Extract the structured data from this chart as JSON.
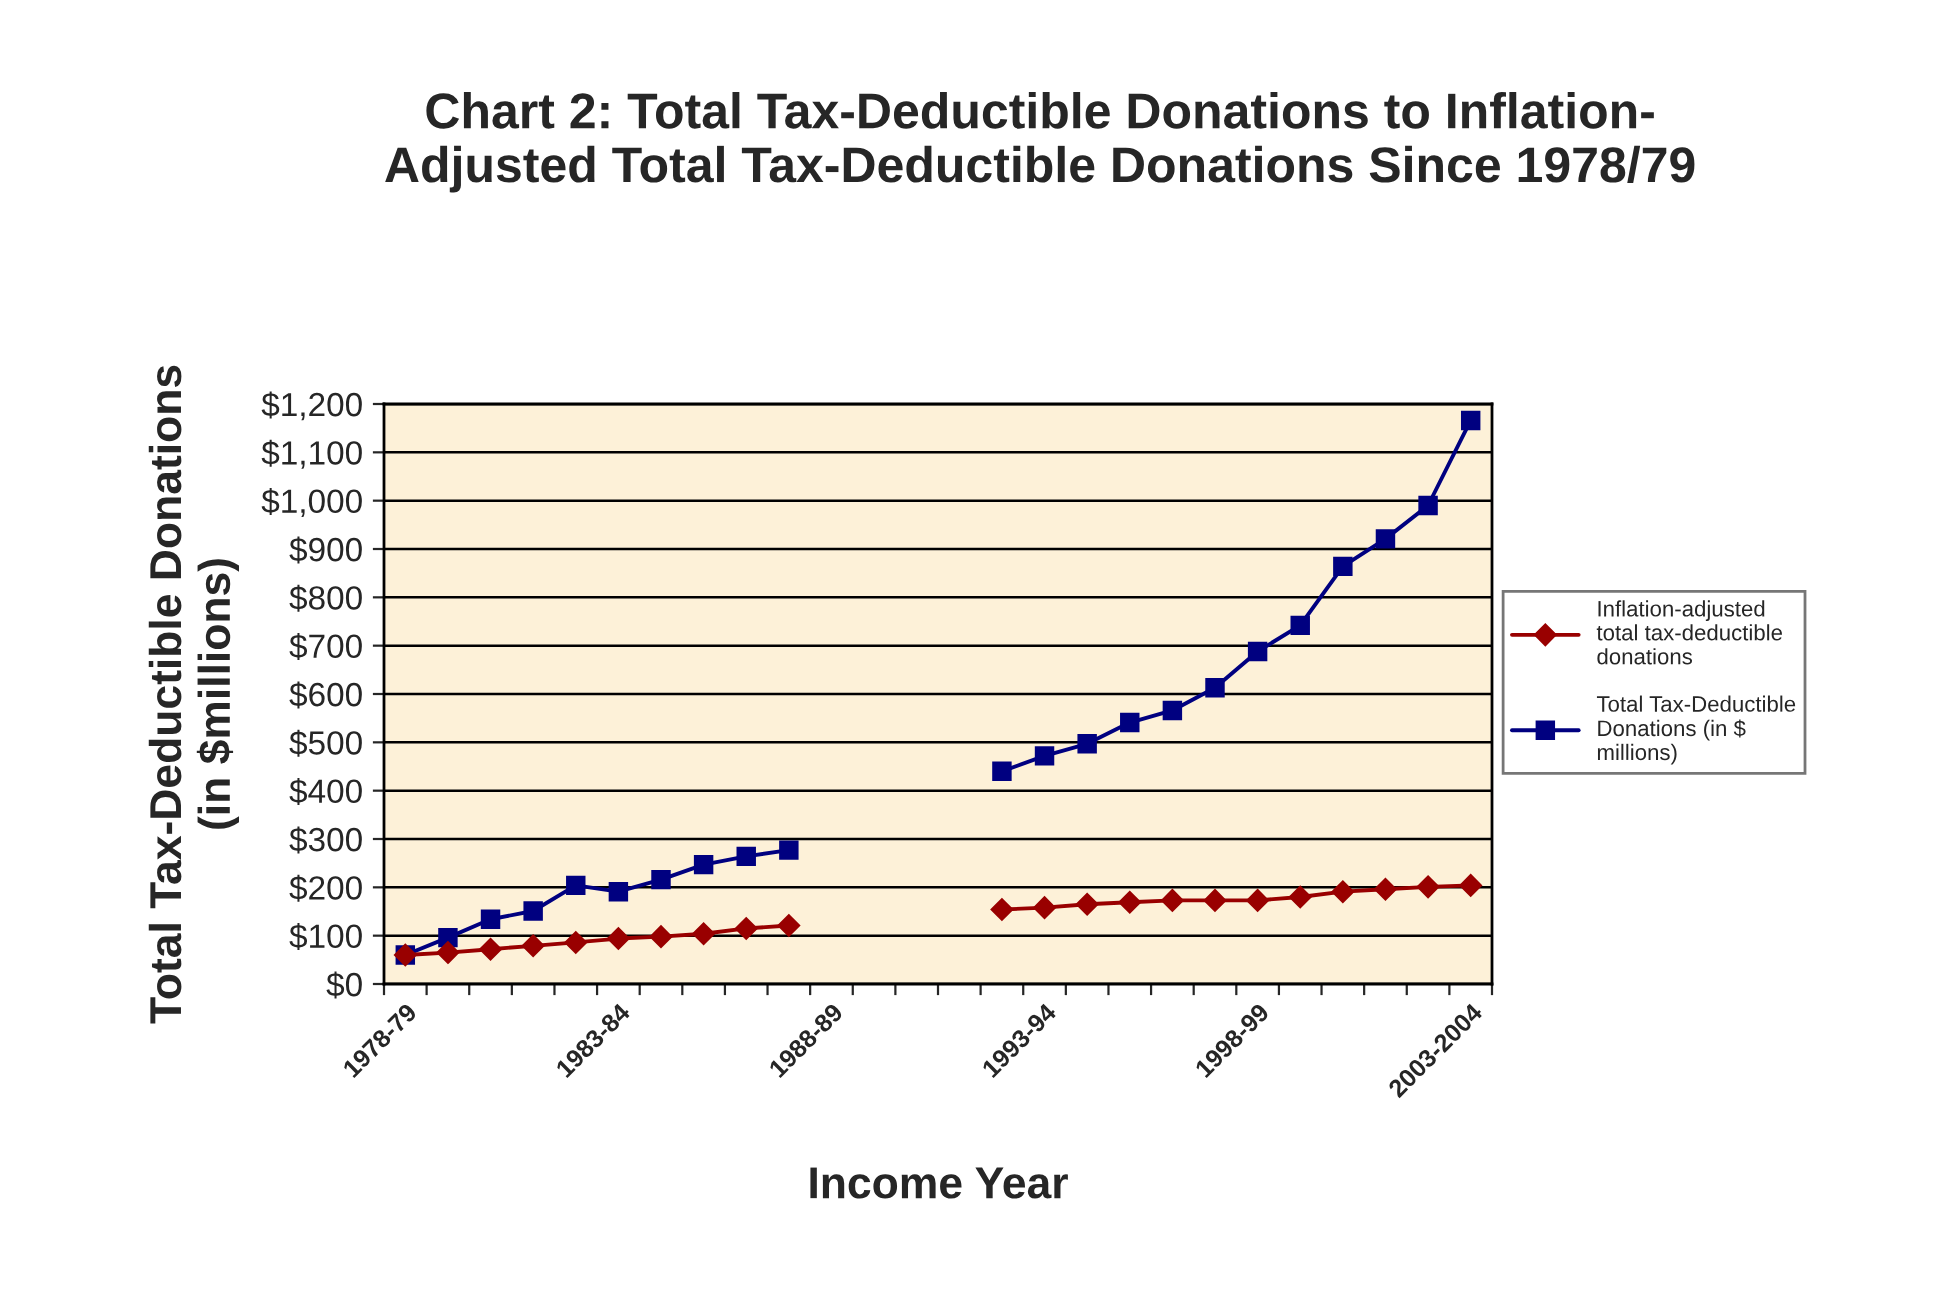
{
  "chart_data": {
    "type": "line",
    "title": "Chart 2: Total Tax-Deductible Donations to Inflation-\nAdjusted Total Tax-Deductible Donations Since 1978/79",
    "xlabel": "Income Year",
    "ylabel": "Total Tax-Deductible Donations\n(in $millions)",
    "categories": [
      "1978-79",
      null,
      null,
      null,
      null,
      "1983-84",
      null,
      null,
      null,
      null,
      "1988-89",
      null,
      null,
      null,
      null,
      "1993-94",
      null,
      null,
      null,
      null,
      "1998-99",
      null,
      null,
      null,
      null,
      "2003-2004"
    ],
    "series": [
      {
        "name": "Inflation-adjusted\ntotal tax-deductible\ndonations",
        "color": "#990000",
        "marker": "diamond",
        "values": [
          60,
          65,
          72,
          79,
          86,
          94,
          98,
          104,
          115,
          121,
          null,
          null,
          null,
          null,
          154,
          158,
          165,
          169,
          173,
          173,
          173,
          180,
          191,
          196,
          201,
          204
        ]
      },
      {
        "name": "Total Tax-Deductible\nDonations (in $\nmillions)",
        "color": "#000080",
        "marker": "square",
        "values": [
          60,
          96,
          134,
          151,
          204,
          191,
          216,
          247,
          264,
          277,
          null,
          null,
          null,
          null,
          440,
          472,
          497,
          541,
          566,
          613,
          688,
          742,
          864,
          921,
          990,
          1166
        ]
      }
    ],
    "ylim": [
      0,
      1200
    ],
    "yticks": [
      {
        "value": 0,
        "label": "$0"
      },
      {
        "value": 100,
        "label": "$100"
      },
      {
        "value": 200,
        "label": "$200"
      },
      {
        "value": 300,
        "label": "$300"
      },
      {
        "value": 400,
        "label": "$400"
      },
      {
        "value": 500,
        "label": "$500"
      },
      {
        "value": 600,
        "label": "$600"
      },
      {
        "value": 700,
        "label": "$700"
      },
      {
        "value": 800,
        "label": "$800"
      },
      {
        "value": 900,
        "label": "$900"
      },
      {
        "value": 1000,
        "label": "$1,000"
      },
      {
        "value": 1100,
        "label": "$1,100"
      },
      {
        "value": 1200,
        "label": "$1,200"
      }
    ],
    "grid": "y",
    "legend": "right",
    "line_style": "solid"
  }
}
